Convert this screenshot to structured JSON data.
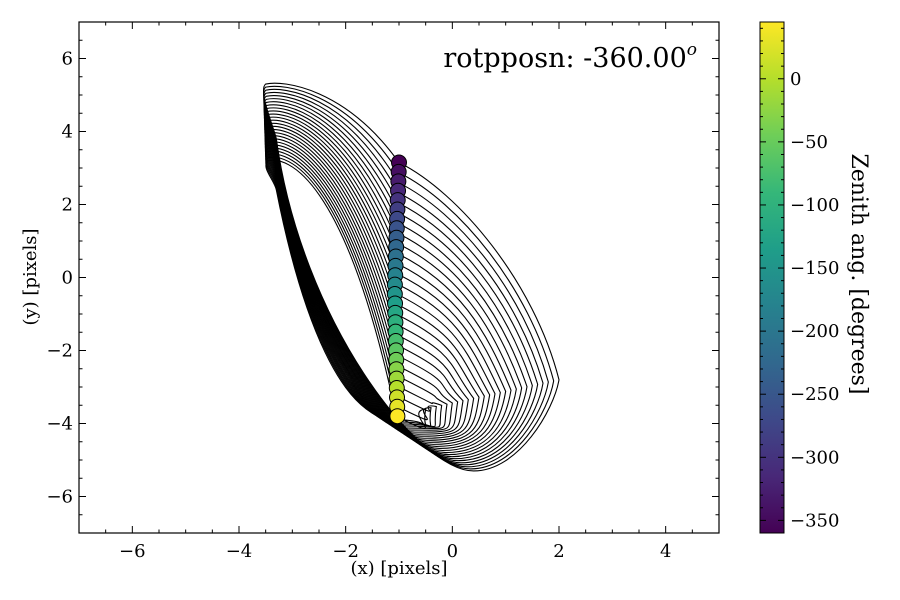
{
  "chart_data": {
    "type": "scatter",
    "annotation": {
      "text": "rotpposn: -360.00",
      "superscript": "o"
    },
    "xlabel": "(x) [pixels]",
    "ylabel": "(y) [pixels]",
    "xlim": [
      -7,
      5
    ],
    "ylim": [
      -7,
      7
    ],
    "xticks": [
      -6,
      -4,
      -2,
      0,
      2,
      4
    ],
    "yticks": [
      -6,
      -4,
      -2,
      0,
      2,
      4,
      6
    ],
    "xtick_labels": [
      "−6",
      "−4",
      "−2",
      "0",
      "2",
      "4"
    ],
    "ytick_labels": [
      "−6",
      "−4",
      "−2",
      "0",
      "2",
      "4",
      "6"
    ],
    "grid": false,
    "colorbar": {
      "label": "Zenith ang. [degrees]",
      "range": [
        -360,
        45
      ],
      "ticks": [
        0,
        -50,
        -100,
        -150,
        -200,
        -250,
        -300,
        -350
      ],
      "tick_labels": [
        "0",
        "−50",
        "−100",
        "−150",
        "−200",
        "−250",
        "−300",
        "−350"
      ],
      "colormap": "viridis",
      "colors": [
        "#440154",
        "#482878",
        "#3e4989",
        "#31688e",
        "#26828e",
        "#1f9e89",
        "#35b779",
        "#6ece58",
        "#b5de2b",
        "#fde725"
      ]
    },
    "points": {
      "count": 28,
      "x_start": -1.0,
      "x_mid": -1.08,
      "x_end": -1.03,
      "y_start": 3.15,
      "y_end": -3.8,
      "zenith_start": -360,
      "zenith_end": 45,
      "edge_color": "#000000"
    },
    "contours": {
      "count": 26,
      "edge_color": "#000000",
      "outer": {
        "top": [
          -3.5,
          5.3
        ],
        "tip": [
          2.0,
          -2.8
        ],
        "bottom": [
          0.4,
          -5.3
        ],
        "left": [
          -3.3,
          3.8
        ],
        "anchor": [
          -1.0,
          3.15
        ]
      },
      "inner": {
        "top": [
          -3.45,
          3.2
        ],
        "tip": [
          -0.5,
          -3.6
        ],
        "bottom": [
          -1.05,
          -3.9
        ],
        "left": [
          -3.3,
          2.4
        ],
        "anchor": [
          -1.05,
          -3.8
        ]
      }
    }
  }
}
